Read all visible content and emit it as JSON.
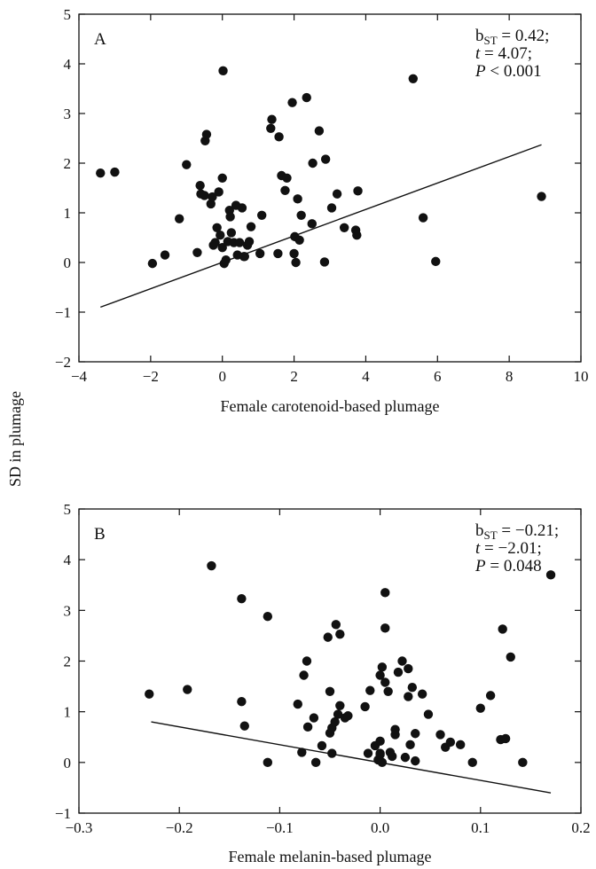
{
  "shared_ylabel": "SD in plumage",
  "chart_data": [
    {
      "type": "scatter",
      "panel": "A",
      "xlabel": "Female carotenoid-based plumage",
      "xlim": [
        -4,
        10
      ],
      "ylim": [
        -2,
        5
      ],
      "xticks": [
        -4,
        -2,
        0,
        2,
        4,
        6,
        8,
        10
      ],
      "yticks": [
        -2,
        -1,
        0,
        1,
        2,
        3,
        4,
        5
      ],
      "xtick_labels": [
        "−4",
        "−2",
        "0",
        "2",
        "4",
        "6",
        "8",
        "10"
      ],
      "ytick_labels": [
        "−2",
        "−1",
        "0",
        "1",
        "2",
        "3",
        "4",
        "5"
      ],
      "stats": {
        "b": "b",
        "sub": "ST",
        "beq": " = 0.42;",
        "t": "t",
        "teq": " = 4.07;",
        "p": "P",
        "peq": " < 0.001"
      },
      "regression": {
        "x": [
          -3.4,
          8.9
        ],
        "y": [
          -0.9,
          2.37
        ]
      },
      "points": [
        [
          -3.4,
          1.8
        ],
        [
          -3.0,
          1.82
        ],
        [
          -1.95,
          -0.02
        ],
        [
          -1.6,
          0.15
        ],
        [
          -1.2,
          0.88
        ],
        [
          -1.0,
          1.97
        ],
        [
          -0.7,
          0.2
        ],
        [
          -0.62,
          1.55
        ],
        [
          -0.6,
          1.38
        ],
        [
          -0.5,
          1.35
        ],
        [
          -0.48,
          2.45
        ],
        [
          -0.44,
          2.58
        ],
        [
          -0.32,
          1.18
        ],
        [
          -0.28,
          1.32
        ],
        [
          -0.25,
          0.35
        ],
        [
          -0.2,
          0.4
        ],
        [
          -0.15,
          0.7
        ],
        [
          -0.1,
          1.42
        ],
        [
          -0.06,
          0.55
        ],
        [
          0.0,
          1.7
        ],
        [
          0.0,
          0.3
        ],
        [
          0.02,
          3.86
        ],
        [
          0.05,
          -0.02
        ],
        [
          0.1,
          0.05
        ],
        [
          0.15,
          0.42
        ],
        [
          0.2,
          1.05
        ],
        [
          0.22,
          0.92
        ],
        [
          0.25,
          0.6
        ],
        [
          0.32,
          0.4
        ],
        [
          0.38,
          1.15
        ],
        [
          0.42,
          0.15
        ],
        [
          0.48,
          0.4
        ],
        [
          0.55,
          1.1
        ],
        [
          0.6,
          0.12
        ],
        [
          0.62,
          0.12
        ],
        [
          0.7,
          0.35
        ],
        [
          0.75,
          0.42
        ],
        [
          0.8,
          0.72
        ],
        [
          1.05,
          0.18
        ],
        [
          1.1,
          0.95
        ],
        [
          1.35,
          2.7
        ],
        [
          1.38,
          2.88
        ],
        [
          1.55,
          0.18
        ],
        [
          1.58,
          2.53
        ],
        [
          1.65,
          1.75
        ],
        [
          1.75,
          1.45
        ],
        [
          1.8,
          1.7
        ],
        [
          1.95,
          3.22
        ],
        [
          2.0,
          0.18
        ],
        [
          2.02,
          0.52
        ],
        [
          2.05,
          0.0
        ],
        [
          2.1,
          1.28
        ],
        [
          2.15,
          0.45
        ],
        [
          2.2,
          0.95
        ],
        [
          2.35,
          3.32
        ],
        [
          2.5,
          0.78
        ],
        [
          2.52,
          2.0
        ],
        [
          2.7,
          2.65
        ],
        [
          2.85,
          0.01
        ],
        [
          2.88,
          2.08
        ],
        [
          3.05,
          1.1
        ],
        [
          3.2,
          1.38
        ],
        [
          3.4,
          0.7
        ],
        [
          3.72,
          0.65
        ],
        [
          3.75,
          0.55
        ],
        [
          3.78,
          1.44
        ],
        [
          5.32,
          3.7
        ],
        [
          5.6,
          0.9
        ],
        [
          5.95,
          0.02
        ],
        [
          8.9,
          1.33
        ]
      ]
    },
    {
      "type": "scatter",
      "panel": "B",
      "xlabel": "Female melanin-based plumage",
      "xlim": [
        -0.3,
        0.2
      ],
      "ylim": [
        -1,
        5
      ],
      "xticks": [
        -0.3,
        -0.2,
        -0.1,
        0.0,
        0.1,
        0.2
      ],
      "yticks": [
        -1,
        0,
        1,
        2,
        3,
        4,
        5
      ],
      "xtick_labels": [
        "−0.3",
        "−0.2",
        "−0.1",
        "0.0",
        "0.1",
        "0.2"
      ],
      "ytick_labels": [
        "−1",
        "0",
        "1",
        "2",
        "3",
        "4",
        "5"
      ],
      "stats": {
        "b": "b",
        "sub": "ST",
        "beq": " = −0.21;",
        "t": "t",
        "teq": " = −2.01;",
        "p": "P",
        "peq": " = 0.048"
      },
      "regression": {
        "x": [
          -0.228,
          0.17
        ],
        "y": [
          0.8,
          -0.6
        ]
      },
      "points": [
        [
          -0.23,
          1.35
        ],
        [
          -0.192,
          1.44
        ],
        [
          -0.168,
          3.88
        ],
        [
          -0.138,
          3.23
        ],
        [
          -0.138,
          1.2
        ],
        [
          -0.135,
          0.72
        ],
        [
          -0.112,
          2.88
        ],
        [
          -0.112,
          0.0
        ],
        [
          -0.082,
          1.15
        ],
        [
          -0.078,
          0.2
        ],
        [
          -0.076,
          1.72
        ],
        [
          -0.073,
          2.0
        ],
        [
          -0.072,
          0.7
        ],
        [
          -0.066,
          0.88
        ],
        [
          -0.064,
          0.0
        ],
        [
          -0.058,
          0.33
        ],
        [
          -0.052,
          2.47
        ],
        [
          -0.05,
          0.58
        ],
        [
          -0.05,
          1.4
        ],
        [
          -0.048,
          0.68
        ],
        [
          -0.048,
          0.18
        ],
        [
          -0.045,
          0.8
        ],
        [
          -0.044,
          2.72
        ],
        [
          -0.042,
          0.95
        ],
        [
          -0.04,
          1.12
        ],
        [
          -0.04,
          2.53
        ],
        [
          -0.035,
          0.88
        ],
        [
          -0.032,
          0.92
        ],
        [
          -0.015,
          1.1
        ],
        [
          -0.012,
          0.18
        ],
        [
          -0.01,
          1.42
        ],
        [
          -0.005,
          0.33
        ],
        [
          -0.002,
          0.05
        ],
        [
          0.0,
          1.72
        ],
        [
          0.0,
          0.42
        ],
        [
          0.0,
          0.18
        ],
        [
          0.0,
          0.15
        ],
        [
          0.002,
          1.88
        ],
        [
          0.002,
          0.0
        ],
        [
          0.005,
          1.58
        ],
        [
          0.005,
          2.65
        ],
        [
          0.005,
          3.35
        ],
        [
          0.008,
          1.4
        ],
        [
          0.01,
          0.2
        ],
        [
          0.012,
          0.12
        ],
        [
          0.015,
          0.55
        ],
        [
          0.015,
          0.65
        ],
        [
          0.018,
          1.78
        ],
        [
          0.022,
          2.0
        ],
        [
          0.025,
          0.1
        ],
        [
          0.028,
          1.3
        ],
        [
          0.028,
          1.85
        ],
        [
          0.03,
          0.35
        ],
        [
          0.032,
          1.48
        ],
        [
          0.035,
          0.57
        ],
        [
          0.035,
          0.03
        ],
        [
          0.042,
          1.35
        ],
        [
          0.048,
          0.95
        ],
        [
          0.06,
          0.55
        ],
        [
          0.065,
          0.3
        ],
        [
          0.07,
          0.4
        ],
        [
          0.08,
          0.35
        ],
        [
          0.092,
          0.0
        ],
        [
          0.1,
          1.07
        ],
        [
          0.11,
          1.32
        ],
        [
          0.12,
          0.45
        ],
        [
          0.122,
          2.63
        ],
        [
          0.125,
          0.47
        ],
        [
          0.13,
          2.08
        ],
        [
          0.142,
          0.0
        ],
        [
          0.17,
          3.7
        ]
      ]
    }
  ]
}
